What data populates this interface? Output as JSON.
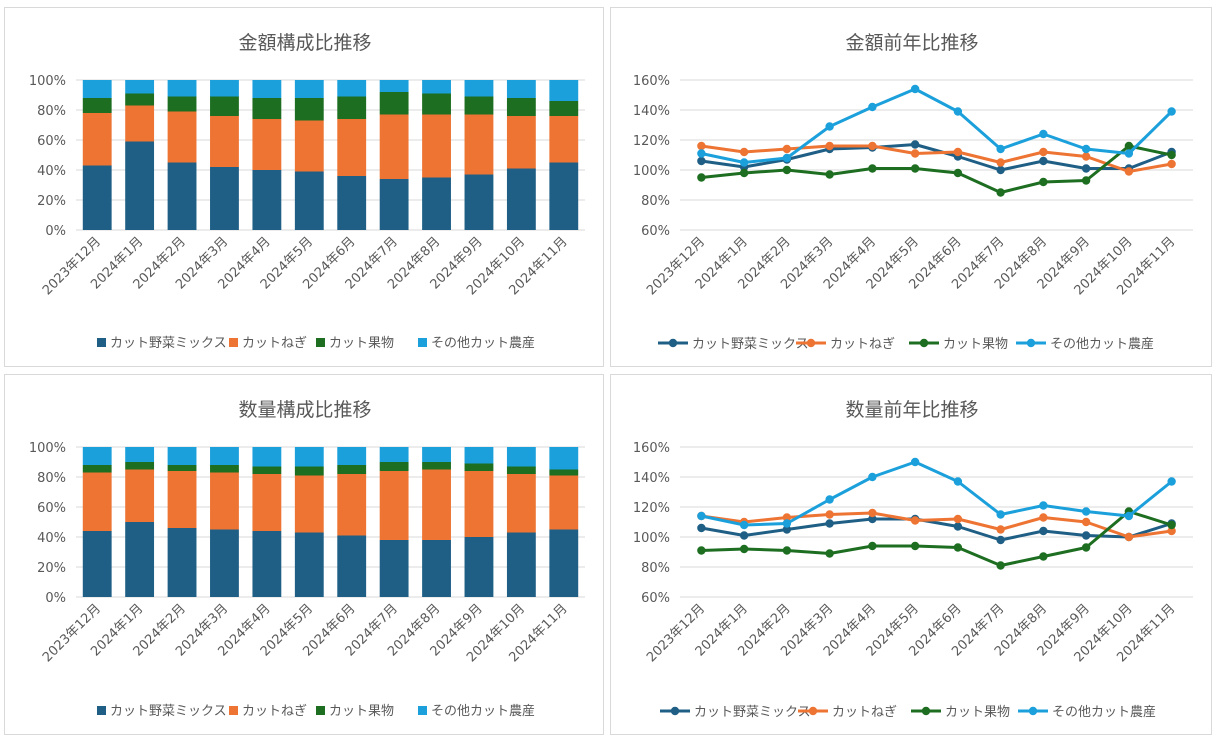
{
  "colors": {
    "series": [
      "#1f5f85",
      "#ed7433",
      "#1e6e22",
      "#1ba0db"
    ],
    "grid": "#d9d9d9",
    "text": "#595959"
  },
  "chart_data": [
    {
      "type": "bar",
      "stacked": true,
      "title": "金額構成比推移",
      "categories": [
        "2023年12月",
        "2024年1月",
        "2024年2月",
        "2024年3月",
        "2024年4月",
        "2024年5月",
        "2024年6月",
        "2024年7月",
        "2024年8月",
        "2024年9月",
        "2024年10月",
        "2024年11月"
      ],
      "y_ticks": [
        "0%",
        "20%",
        "40%",
        "60%",
        "80%",
        "100%"
      ],
      "ylim": [
        0,
        100
      ],
      "legend_position": "bottom",
      "series": [
        {
          "name": "カット野菜ミックス",
          "values": [
            43,
            59,
            45,
            42,
            40,
            39,
            36,
            34,
            35,
            37,
            41,
            45
          ]
        },
        {
          "name": "カットねぎ",
          "values": [
            35,
            24,
            34,
            34,
            34,
            34,
            38,
            43,
            42,
            40,
            35,
            31
          ]
        },
        {
          "name": "カット果物",
          "values": [
            10,
            8,
            10,
            13,
            14,
            15,
            15,
            15,
            14,
            12,
            12,
            10
          ]
        },
        {
          "name": "その他カット農産",
          "values": [
            12,
            9,
            11,
            11,
            12,
            12,
            11,
            8,
            9,
            11,
            12,
            14
          ]
        }
      ]
    },
    {
      "type": "line",
      "title": "金額前年比推移",
      "categories": [
        "2023年12月",
        "2024年1月",
        "2024年2月",
        "2024年3月",
        "2024年4月",
        "2024年5月",
        "2024年6月",
        "2024年7月",
        "2024年8月",
        "2024年9月",
        "2024年10月",
        "2024年11月"
      ],
      "y_ticks": [
        "60%",
        "80%",
        "100%",
        "120%",
        "140%",
        "160%"
      ],
      "ylim": [
        60,
        160
      ],
      "legend_position": "bottom",
      "series": [
        {
          "name": "カット野菜ミックス",
          "values": [
            106,
            102,
            107,
            114,
            115,
            117,
            109,
            100,
            106,
            101,
            101,
            112
          ]
        },
        {
          "name": "カットねぎ",
          "values": [
            116,
            112,
            114,
            116,
            116,
            111,
            112,
            105,
            112,
            109,
            99,
            104
          ]
        },
        {
          "name": "カット果物",
          "values": [
            95,
            98,
            100,
            97,
            101,
            101,
            98,
            85,
            92,
            93,
            116,
            110
          ]
        },
        {
          "name": "その他カット農産",
          "values": [
            111,
            105,
            108,
            129,
            142,
            154,
            139,
            114,
            124,
            114,
            111,
            139
          ]
        }
      ]
    },
    {
      "type": "bar",
      "stacked": true,
      "title": "数量構成比推移",
      "categories": [
        "2023年12月",
        "2024年1月",
        "2024年2月",
        "2024年3月",
        "2024年4月",
        "2024年5月",
        "2024年6月",
        "2024年7月",
        "2024年8月",
        "2024年9月",
        "2024年10月",
        "2024年11月"
      ],
      "y_ticks": [
        "0%",
        "20%",
        "40%",
        "60%",
        "80%",
        "100%"
      ],
      "ylim": [
        0,
        100
      ],
      "legend_position": "bottom",
      "series": [
        {
          "name": "カット野菜ミックス",
          "values": [
            44,
            50,
            46,
            45,
            44,
            43,
            41,
            38,
            38,
            40,
            43,
            45
          ]
        },
        {
          "name": "カットねぎ",
          "values": [
            39,
            35,
            38,
            38,
            38,
            38,
            41,
            46,
            47,
            44,
            39,
            36
          ]
        },
        {
          "name": "カット果物",
          "values": [
            5,
            5,
            4,
            5,
            5,
            6,
            6,
            6,
            5,
            5,
            5,
            4
          ]
        },
        {
          "name": "その他カット農産",
          "values": [
            12,
            10,
            12,
            12,
            13,
            13,
            12,
            10,
            10,
            11,
            13,
            15
          ]
        }
      ]
    },
    {
      "type": "line",
      "title": "数量前年比推移",
      "categories": [
        "2023年12月",
        "2024年1月",
        "2024年2月",
        "2024年3月",
        "2024年4月",
        "2024年5月",
        "2024年6月",
        "2024年7月",
        "2024年8月",
        "2024年9月",
        "2024年10月",
        "2024年11月"
      ],
      "y_ticks": [
        "60%",
        "80%",
        "100%",
        "120%",
        "140%",
        "160%"
      ],
      "ylim": [
        60,
        160
      ],
      "legend_position": "bottom",
      "series": [
        {
          "name": "カット野菜ミックス",
          "values": [
            106,
            101,
            105,
            109,
            112,
            112,
            107,
            98,
            104,
            101,
            100,
            109
          ]
        },
        {
          "name": "カットねぎ",
          "values": [
            114,
            110,
            113,
            115,
            116,
            111,
            112,
            105,
            113,
            110,
            100,
            104
          ]
        },
        {
          "name": "カット果物",
          "values": [
            91,
            92,
            91,
            89,
            94,
            94,
            93,
            81,
            87,
            93,
            117,
            108
          ]
        },
        {
          "name": "その他カット農産",
          "values": [
            114,
            108,
            109,
            125,
            140,
            150,
            137,
            115,
            121,
            117,
            114,
            137
          ]
        }
      ]
    }
  ]
}
